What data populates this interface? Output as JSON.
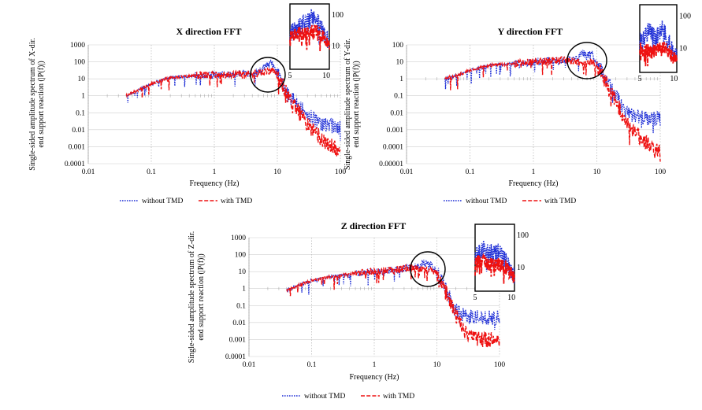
{
  "colors": {
    "without": "#1f2fd6",
    "with": "#ee1111",
    "axis": "#555555",
    "grid": "#cfcfcf"
  },
  "legend": {
    "without_label": "without TMD",
    "with_label": "with TMD"
  },
  "chart_data": [
    {
      "id": "x",
      "type": "line",
      "title": "X direction FFT",
      "xlabel": "Frequency (Hz)",
      "ylabel_line1": "Single-sided amplitude spectrum of X-dir.",
      "ylabel_line2": "end support reaction (|P(f)|)",
      "xscale": "log",
      "yscale": "log",
      "xlim": [
        0.01,
        100
      ],
      "ylim": [
        0.0001,
        1000
      ],
      "xticks": [
        "0.01",
        "0.1",
        "1",
        "10",
        "100"
      ],
      "yticks": [
        "0.0001",
        "0.001",
        "0.01",
        "0.1",
        "1",
        "10",
        "100",
        "1000"
      ],
      "series": [
        {
          "name": "without TMD",
          "x": [
            0.04,
            0.06,
            0.1,
            0.2,
            0.5,
            1,
            2,
            3,
            5,
            6,
            7,
            8,
            9,
            10,
            12,
            15,
            20,
            30,
            50,
            100
          ],
          "y": [
            1,
            2,
            5,
            12,
            15,
            17,
            18,
            20,
            25,
            40,
            60,
            100,
            35,
            20,
            6,
            1,
            0.4,
            0.08,
            0.02,
            0.012
          ]
        },
        {
          "name": "with TMD",
          "x": [
            0.04,
            0.06,
            0.1,
            0.2,
            0.5,
            1,
            2,
            3,
            5,
            6,
            7,
            8,
            9,
            10,
            12,
            15,
            20,
            30,
            50,
            100
          ],
          "y": [
            1,
            2,
            5,
            12,
            15,
            17,
            18,
            20,
            22,
            25,
            25,
            30,
            25,
            15,
            5,
            0.8,
            0.2,
            0.02,
            0.003,
            0.0005
          ]
        }
      ],
      "inset": {
        "xticks": [
          "5",
          "10"
        ],
        "yticks": [
          "100",
          "10"
        ]
      }
    },
    {
      "id": "y",
      "type": "line",
      "title": "Y direction FFT",
      "xlabel": "Frequency (Hz)",
      "ylabel_line1": "Single-sided amplitude spectrum of Y-dir.",
      "ylabel_line2": "end support reaction (|P(f)|)",
      "xscale": "log",
      "yscale": "log",
      "xlim": [
        0.01,
        100
      ],
      "ylim": [
        1e-05,
        100
      ],
      "xticks": [
        "0.01",
        "0.1",
        "1",
        "10",
        "100"
      ],
      "yticks": [
        "0.00001",
        "0.0001",
        "0.001",
        "0.01",
        "0.1",
        "1",
        "10",
        "100"
      ],
      "series": [
        {
          "name": "without TMD",
          "x": [
            0.04,
            0.06,
            0.1,
            0.2,
            0.5,
            1,
            2,
            3,
            5,
            6,
            7,
            8,
            9,
            10,
            12,
            15,
            20,
            30,
            50,
            100
          ],
          "y": [
            1,
            1.5,
            3,
            6,
            8,
            10,
            12,
            12,
            15,
            35,
            20,
            40,
            15,
            8,
            3,
            0.5,
            0.1,
            0.01,
            0.005,
            0.004
          ]
        },
        {
          "name": "with TMD",
          "x": [
            0.04,
            0.06,
            0.1,
            0.2,
            0.5,
            1,
            2,
            3,
            5,
            6,
            7,
            8,
            9,
            10,
            12,
            15,
            20,
            30,
            50,
            100
          ],
          "y": [
            1,
            1.5,
            3,
            6,
            8,
            10,
            12,
            12,
            10,
            8,
            8,
            10,
            8,
            5,
            2,
            0.4,
            0.05,
            0.002,
            0.0003,
            5e-05
          ]
        }
      ],
      "inset": {
        "xticks": [
          "5",
          "10"
        ],
        "yticks": [
          "100",
          "10"
        ]
      }
    },
    {
      "id": "z",
      "type": "line",
      "title": "Z direction FFT",
      "xlabel": "Frequency (Hz)",
      "ylabel_line1": "Single-sided amplitude spectrum of Z-dir.",
      "ylabel_line2": "end support reaction (|P(f)|)",
      "xscale": "log",
      "yscale": "log",
      "xlim": [
        0.01,
        100
      ],
      "ylim": [
        0.0001,
        1000
      ],
      "xticks": [
        "0.01",
        "0.1",
        "1",
        "10",
        "100"
      ],
      "yticks": [
        "0.0001",
        "0.001",
        "0.01",
        "0.1",
        "1",
        "10",
        "100",
        "1000"
      ],
      "series": [
        {
          "name": "without TMD",
          "x": [
            0.04,
            0.06,
            0.1,
            0.2,
            0.5,
            1,
            2,
            3,
            5,
            6,
            7,
            8,
            9,
            10,
            12,
            15,
            20,
            30,
            50,
            100
          ],
          "y": [
            0.8,
            1.5,
            3,
            5,
            8,
            10,
            12,
            15,
            20,
            40,
            25,
            30,
            15,
            8,
            3,
            0.5,
            0.05,
            0.02,
            0.02,
            0.02
          ]
        },
        {
          "name": "with TMD",
          "x": [
            0.04,
            0.06,
            0.1,
            0.2,
            0.5,
            1,
            2,
            3,
            5,
            6,
            7,
            8,
            9,
            10,
            12,
            15,
            20,
            30,
            50,
            100
          ],
          "y": [
            0.8,
            1.5,
            3,
            5,
            8,
            10,
            12,
            15,
            15,
            15,
            12,
            12,
            10,
            6,
            2,
            0.4,
            0.03,
            0.002,
            0.001,
            0.001
          ]
        }
      ],
      "inset": {
        "xticks": [
          "5",
          "10"
        ],
        "yticks": [
          "100",
          "10"
        ]
      }
    }
  ]
}
